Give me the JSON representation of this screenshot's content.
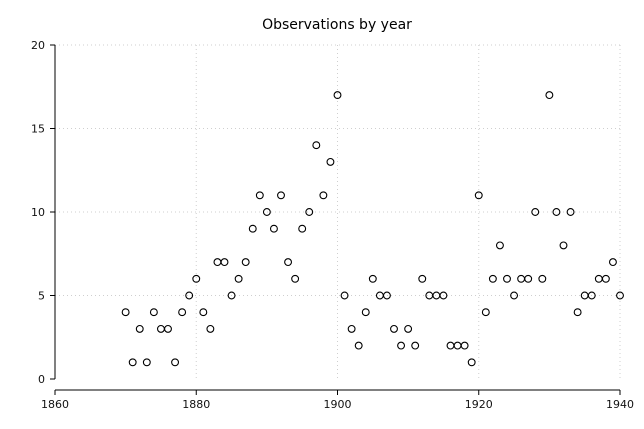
{
  "chart_data": {
    "type": "scatter",
    "title": "Observations by year",
    "xlabel": "",
    "ylabel": "",
    "xlim": [
      1860,
      1940
    ],
    "ylim": [
      0,
      20
    ],
    "x_ticks": [
      1860,
      1880,
      1900,
      1920,
      1940
    ],
    "y_ticks": [
      0,
      5,
      10,
      15,
      20
    ],
    "grid": true,
    "marker": "hollow-circle",
    "series": [
      {
        "x": [
          1870,
          1871,
          1872,
          1873,
          1874,
          1875,
          1876,
          1877,
          1878,
          1879,
          1880,
          1881,
          1882,
          1883,
          1884,
          1885,
          1886,
          1887,
          1888,
          1889,
          1890,
          1891,
          1892,
          1893,
          1894,
          1895,
          1896,
          1897,
          1898,
          1899,
          1900,
          1901,
          1902,
          1903,
          1904,
          1905,
          1906,
          1907,
          1908,
          1909,
          1910,
          1911,
          1912,
          1913,
          1914,
          1915,
          1916,
          1917,
          1918,
          1919,
          1920,
          1921,
          1922,
          1923,
          1924,
          1925,
          1926,
          1927,
          1928,
          1929,
          1930,
          1931,
          1932,
          1933,
          1934,
          1935,
          1936,
          1937,
          1938,
          1939,
          1940
        ],
        "y": [
          4,
          1,
          3,
          1,
          4,
          3,
          3,
          1,
          4,
          5,
          6,
          4,
          3,
          7,
          7,
          5,
          6,
          7,
          9,
          11,
          10,
          9,
          11,
          7,
          6,
          9,
          10,
          14,
          11,
          13,
          17,
          5,
          3,
          2,
          4,
          6,
          5,
          5,
          3,
          2,
          3,
          2,
          6,
          5,
          5,
          5,
          2,
          2,
          2,
          1,
          11,
          4,
          6,
          8,
          6,
          5,
          6,
          6,
          10,
          6,
          17,
          10,
          8,
          10,
          4,
          5,
          5,
          6,
          6,
          7,
          5
        ]
      }
    ]
  }
}
